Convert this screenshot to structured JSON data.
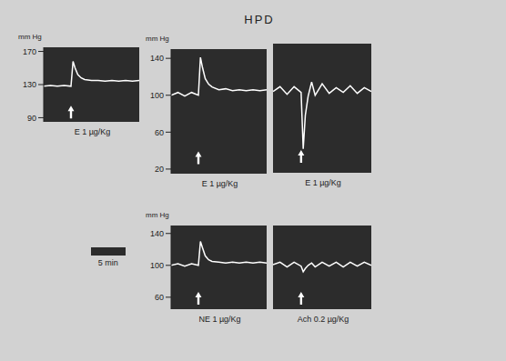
{
  "title": "HPD",
  "scale_bar": {
    "label": "5 min",
    "minutes": 5
  },
  "chart_data": [
    {
      "type": "line",
      "title": "E 1 µg/Kg",
      "y_label": "mm Hg",
      "x": [
        0,
        1,
        2,
        3,
        4,
        4.3,
        4.6,
        5,
        5.5,
        6,
        7,
        8,
        9,
        10,
        11,
        12,
        13,
        14
      ],
      "values": [
        128,
        129,
        128,
        129,
        128,
        158,
        150,
        142,
        138,
        136,
        135,
        135,
        134,
        135,
        134,
        135,
        134,
        135
      ],
      "color": "#ffffff",
      "xlim": [
        0,
        14
      ],
      "ylim": [
        85,
        175
      ],
      "yticks": [
        90,
        130,
        170
      ],
      "tick_labels": "y",
      "injection": 4
    },
    {
      "type": "line",
      "title": "E 1 µg/Kg",
      "y_label": "mm Hg",
      "x": [
        0,
        1,
        2,
        3,
        4,
        4.3,
        4.6,
        5,
        5.5,
        6,
        7,
        8,
        9,
        10,
        11,
        12,
        13,
        14
      ],
      "values": [
        100,
        103,
        99,
        103,
        100,
        141,
        130,
        118,
        112,
        109,
        106,
        107,
        105,
        106,
        105,
        106,
        105,
        106
      ],
      "color": "#ffffff",
      "xlim": [
        0,
        14
      ],
      "ylim": [
        15,
        150
      ],
      "yticks": [
        20,
        60,
        100,
        140
      ],
      "tick_labels": "y",
      "injection": 4
    },
    {
      "type": "line",
      "title": "E 1 µg/Kg",
      "x": [
        0,
        1,
        2,
        3,
        4,
        4.3,
        4.6,
        5,
        5.5,
        6,
        7,
        8,
        9,
        10,
        11,
        12,
        13,
        14
      ],
      "values": [
        100,
        105,
        97,
        105,
        99,
        40,
        75,
        95,
        110,
        96,
        108,
        98,
        104,
        99,
        106,
        98,
        104,
        100
      ],
      "color": "#ffffff",
      "xlim": [
        0,
        14
      ],
      "ylim": [
        15,
        150
      ],
      "tick_labels": false,
      "injection": 4
    },
    {
      "type": "line",
      "title": "NE 1 µg/Kg",
      "y_label": "mm Hg",
      "x": [
        0,
        1,
        2,
        3,
        4,
        4.3,
        4.6,
        5,
        5.5,
        6,
        7,
        8,
        9,
        10,
        11,
        12,
        13,
        14
      ],
      "values": [
        100,
        102,
        99,
        102,
        100,
        130,
        122,
        112,
        107,
        105,
        104,
        103,
        104,
        103,
        104,
        103,
        104,
        103
      ],
      "color": "#ffffff",
      "xlim": [
        0,
        14
      ],
      "ylim": [
        45,
        150
      ],
      "yticks": [
        60,
        100,
        140
      ],
      "tick_labels": "y",
      "injection": 4
    },
    {
      "type": "line",
      "title": "Ach 0.2 µg/Kg",
      "x": [
        0,
        1,
        2,
        3,
        4,
        4.3,
        4.6,
        5,
        5.5,
        6,
        7,
        8,
        9,
        10,
        11,
        12,
        13,
        14
      ],
      "values": [
        101,
        104,
        98,
        104,
        99,
        92,
        96,
        100,
        103,
        98,
        104,
        99,
        104,
        98,
        104,
        99,
        104,
        100
      ],
      "color": "#ffffff",
      "xlim": [
        0,
        14
      ],
      "ylim": [
        45,
        150
      ],
      "tick_labels": false,
      "injection": 4
    }
  ]
}
